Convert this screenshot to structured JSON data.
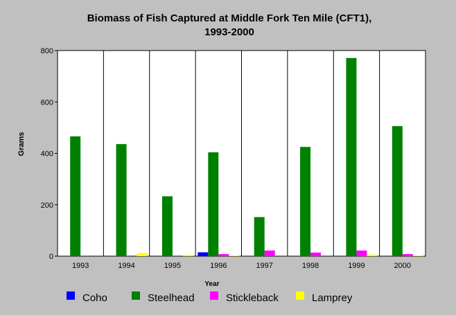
{
  "chart_data": {
    "type": "bar",
    "title": [
      "Biomass of Fish Captured at Middle Fork Ten Mile (CFT1),",
      "1993-2000"
    ],
    "xlabel": "Year",
    "ylabel": "Grams",
    "categories": [
      "1993",
      "1994",
      "1995",
      "1996",
      "1997",
      "1998",
      "1999",
      "2000"
    ],
    "ylim": [
      0,
      800
    ],
    "yticks": [
      0,
      200,
      400,
      600,
      800
    ],
    "grid": "vertical lines between categories",
    "legend_position": "bottom",
    "series": [
      {
        "name": "Coho",
        "color": "#0000ff",
        "values": [
          0,
          0,
          0,
          15,
          0,
          0,
          0,
          0
        ]
      },
      {
        "name": "Steelhead",
        "color": "#008000",
        "values": [
          466,
          436,
          233,
          404,
          152,
          425,
          771,
          506
        ]
      },
      {
        "name": "Stickleback",
        "color": "#ff00ff",
        "values": [
          0,
          0,
          0,
          8,
          22,
          14,
          22,
          8
        ]
      },
      {
        "name": "Lamprey",
        "color": "#ffff00",
        "values": [
          0,
          12,
          5,
          3,
          0,
          0,
          6,
          3
        ]
      }
    ]
  }
}
